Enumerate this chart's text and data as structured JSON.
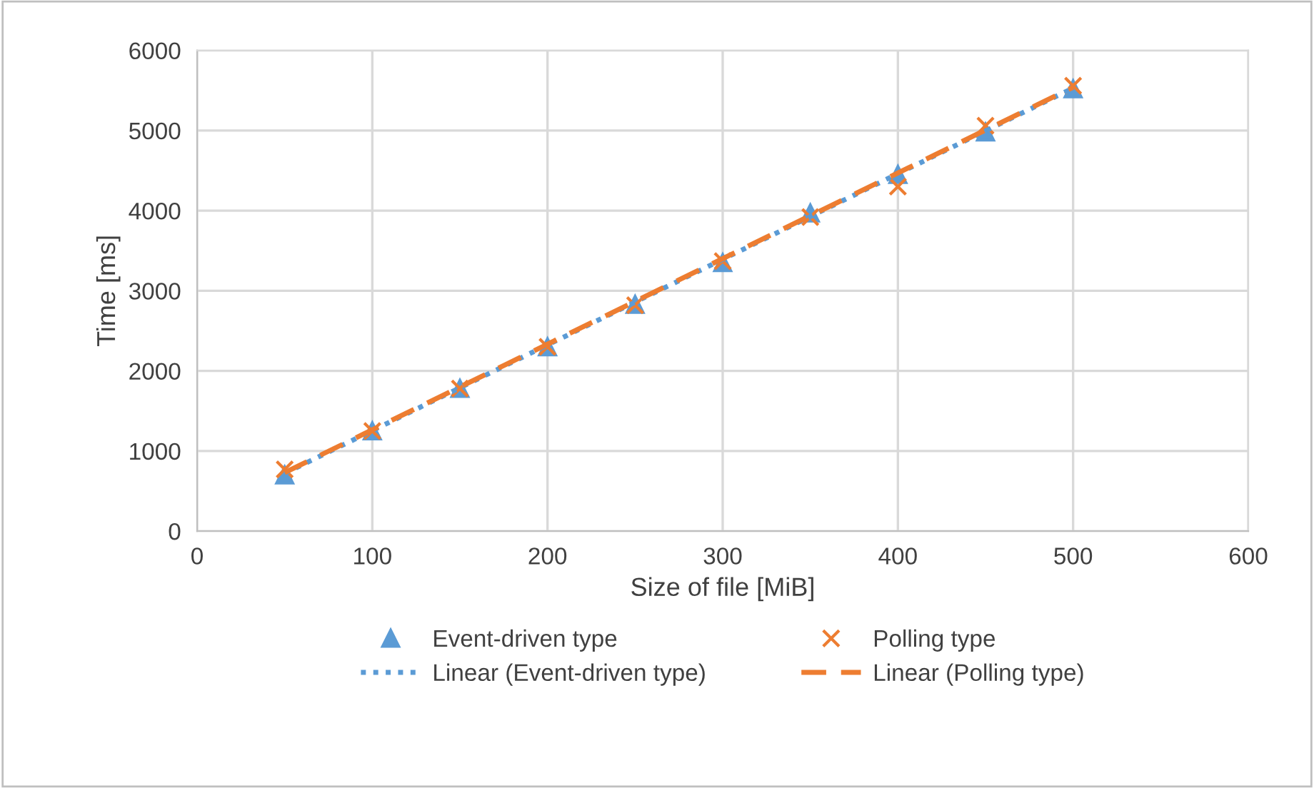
{
  "chart_data": {
    "type": "scatter",
    "xlabel": "Size of file [MiB]",
    "ylabel": "Time [ms]",
    "xlim": [
      0,
      600
    ],
    "xticks": [
      0,
      100,
      200,
      300,
      400,
      500,
      600
    ],
    "ylim": [
      0,
      6000
    ],
    "yticks": [
      0,
      1000,
      2000,
      3000,
      4000,
      5000,
      6000
    ],
    "grid": true,
    "legend": "bottom",
    "series": [
      {
        "name": "Event-driven type",
        "marker": "triangle",
        "color": "#5b9bd5",
        "x": [
          50,
          100,
          150,
          200,
          250,
          300,
          350,
          400,
          450,
          500
        ],
        "values": [
          700,
          1250,
          1780,
          2300,
          2830,
          3350,
          3970,
          4450,
          4980,
          5520
        ]
      },
      {
        "name": "Polling type",
        "marker": "cross",
        "color": "#ed7d31",
        "x": [
          50,
          100,
          150,
          200,
          250,
          300,
          350,
          400,
          450,
          500
        ],
        "values": [
          770,
          1250,
          1780,
          2300,
          2820,
          3370,
          3920,
          4300,
          5060,
          5560
        ]
      },
      {
        "name": "Linear (Event-driven type)",
        "type": "line",
        "line_style": "dotted",
        "color": "#5b9bd5",
        "x": [
          50,
          500
        ],
        "values": [
          720,
          5530
        ]
      },
      {
        "name": "Linear (Polling type)",
        "type": "line",
        "line_style": "dashed",
        "color": "#ed7d31",
        "x": [
          50,
          500
        ],
        "values": [
          730,
          5540
        ]
      }
    ]
  }
}
